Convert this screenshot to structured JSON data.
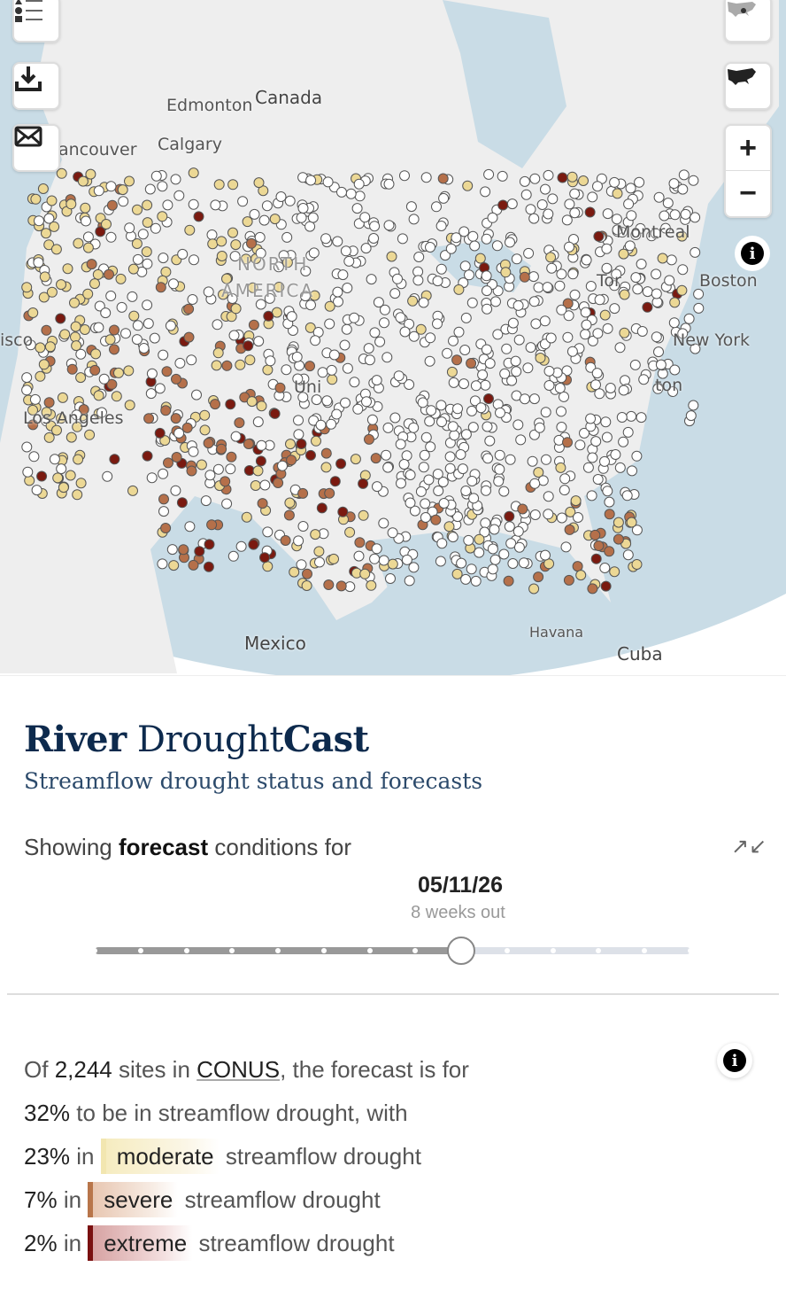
{
  "map": {
    "labels": {
      "canada": "Canada",
      "edmonton": "Edmonton",
      "calgary": "Calgary",
      "vancouver": "ancouver",
      "north": "NORTH",
      "america": "AMERICA",
      "montreal": "Montreal",
      "toronto": "Tor",
      "boston": "Boston",
      "newyork": "New York",
      "washington": "ton",
      "la": "Los Angeles",
      "sf": "isco",
      "us": "Uni",
      "mexico": "Mexico",
      "havana": "Havana",
      "cuba": "Cuba"
    },
    "controls": {
      "legend": "legend-icon",
      "download": "download-icon",
      "email": "mail-icon",
      "zoom_in": "+",
      "zoom_out": "−",
      "info": "i"
    },
    "colors": {
      "none": "#ffffff",
      "moderate": "#ecd895",
      "severe": "#b5704a",
      "extreme": "#7a1a10",
      "ocean": "#c9dce6",
      "land": "#eeeeee"
    }
  },
  "panel": {
    "title_1": "River",
    "title_2": "Drought",
    "title_3": "Cast",
    "subtitle": "Streamflow drought status and forecasts",
    "showing_pre": "Showing",
    "showing_mode": "forecast",
    "showing_post": "conditions for",
    "date": "05/11/26",
    "weeks_out": "8 weeks out",
    "slider": {
      "positions": 14,
      "selected_index": 8
    },
    "stats": {
      "l1_pre": "Of",
      "sites": "2,244",
      "l1_mid": "sites in",
      "region": "CONUS",
      "l1_post": ", the forecast is for",
      "total_pct": "32%",
      "l2_post": "to be in streamflow drought, with",
      "moderate_pct": "23%",
      "in": "in",
      "moderate": "moderate",
      "severe_pct": "7%",
      "severe": "severe",
      "extreme_pct": "2%",
      "extreme": "extreme",
      "suffix": "streamflow drought"
    },
    "info": "i"
  }
}
